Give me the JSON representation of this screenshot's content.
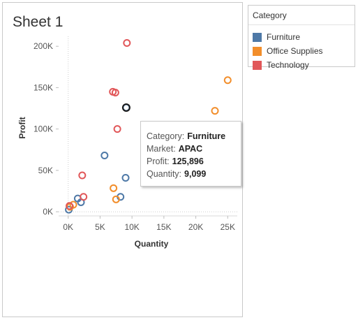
{
  "sheet": {
    "title": "Sheet 1"
  },
  "legend": {
    "title": "Category",
    "items": [
      {
        "label": "Furniture",
        "color": "#4e79a7"
      },
      {
        "label": "Office Supplies",
        "color": "#f28e2b"
      },
      {
        "label": "Technology",
        "color": "#e15759"
      }
    ]
  },
  "tooltip": {
    "rows": [
      {
        "key": "Category:",
        "value": "Furniture"
      },
      {
        "key": "Market:",
        "value": "APAC"
      },
      {
        "key": "Profit:",
        "value": "125,896"
      },
      {
        "key": "Quantity:",
        "value": "9,099"
      }
    ]
  },
  "chart_data": {
    "type": "scatter",
    "xlabel": "Quantity",
    "ylabel": "Profit",
    "xlim": [
      -1500,
      26500
    ],
    "ylim": [
      -5000,
      212000
    ],
    "x_ticks": [
      0,
      5000,
      10000,
      15000,
      20000,
      25000
    ],
    "x_tick_labels": [
      "0K",
      "5K",
      "10K",
      "15K",
      "20K",
      "25K"
    ],
    "y_ticks": [
      0,
      50000,
      100000,
      150000,
      200000
    ],
    "y_tick_labels": [
      "0K",
      "50K",
      "100K",
      "150K",
      "200K"
    ],
    "grid": false,
    "legend_position": "right",
    "highlighted_point": {
      "category": "Furniture",
      "x": 9099,
      "y": 125896
    },
    "series": [
      {
        "name": "Furniture",
        "color": "#4e79a7",
        "points": [
          [
            9099,
            125896
          ],
          [
            5700,
            68000
          ],
          [
            9000,
            41000
          ],
          [
            8200,
            18000
          ],
          [
            1500,
            16000
          ],
          [
            2000,
            11500
          ],
          [
            100,
            2500
          ]
        ]
      },
      {
        "name": "Office Supplies",
        "color": "#f28e2b",
        "points": [
          [
            25000,
            159000
          ],
          [
            23000,
            122000
          ],
          [
            7100,
            28500
          ],
          [
            7500,
            15000
          ],
          [
            800,
            8500
          ],
          [
            300,
            6000
          ]
        ]
      },
      {
        "name": "Technology",
        "color": "#e15759",
        "points": [
          [
            9200,
            204000
          ],
          [
            7000,
            145000
          ],
          [
            7400,
            144000
          ],
          [
            7700,
            100000
          ],
          [
            2200,
            44000
          ],
          [
            2400,
            18000
          ],
          [
            200,
            7000
          ]
        ]
      }
    ]
  }
}
